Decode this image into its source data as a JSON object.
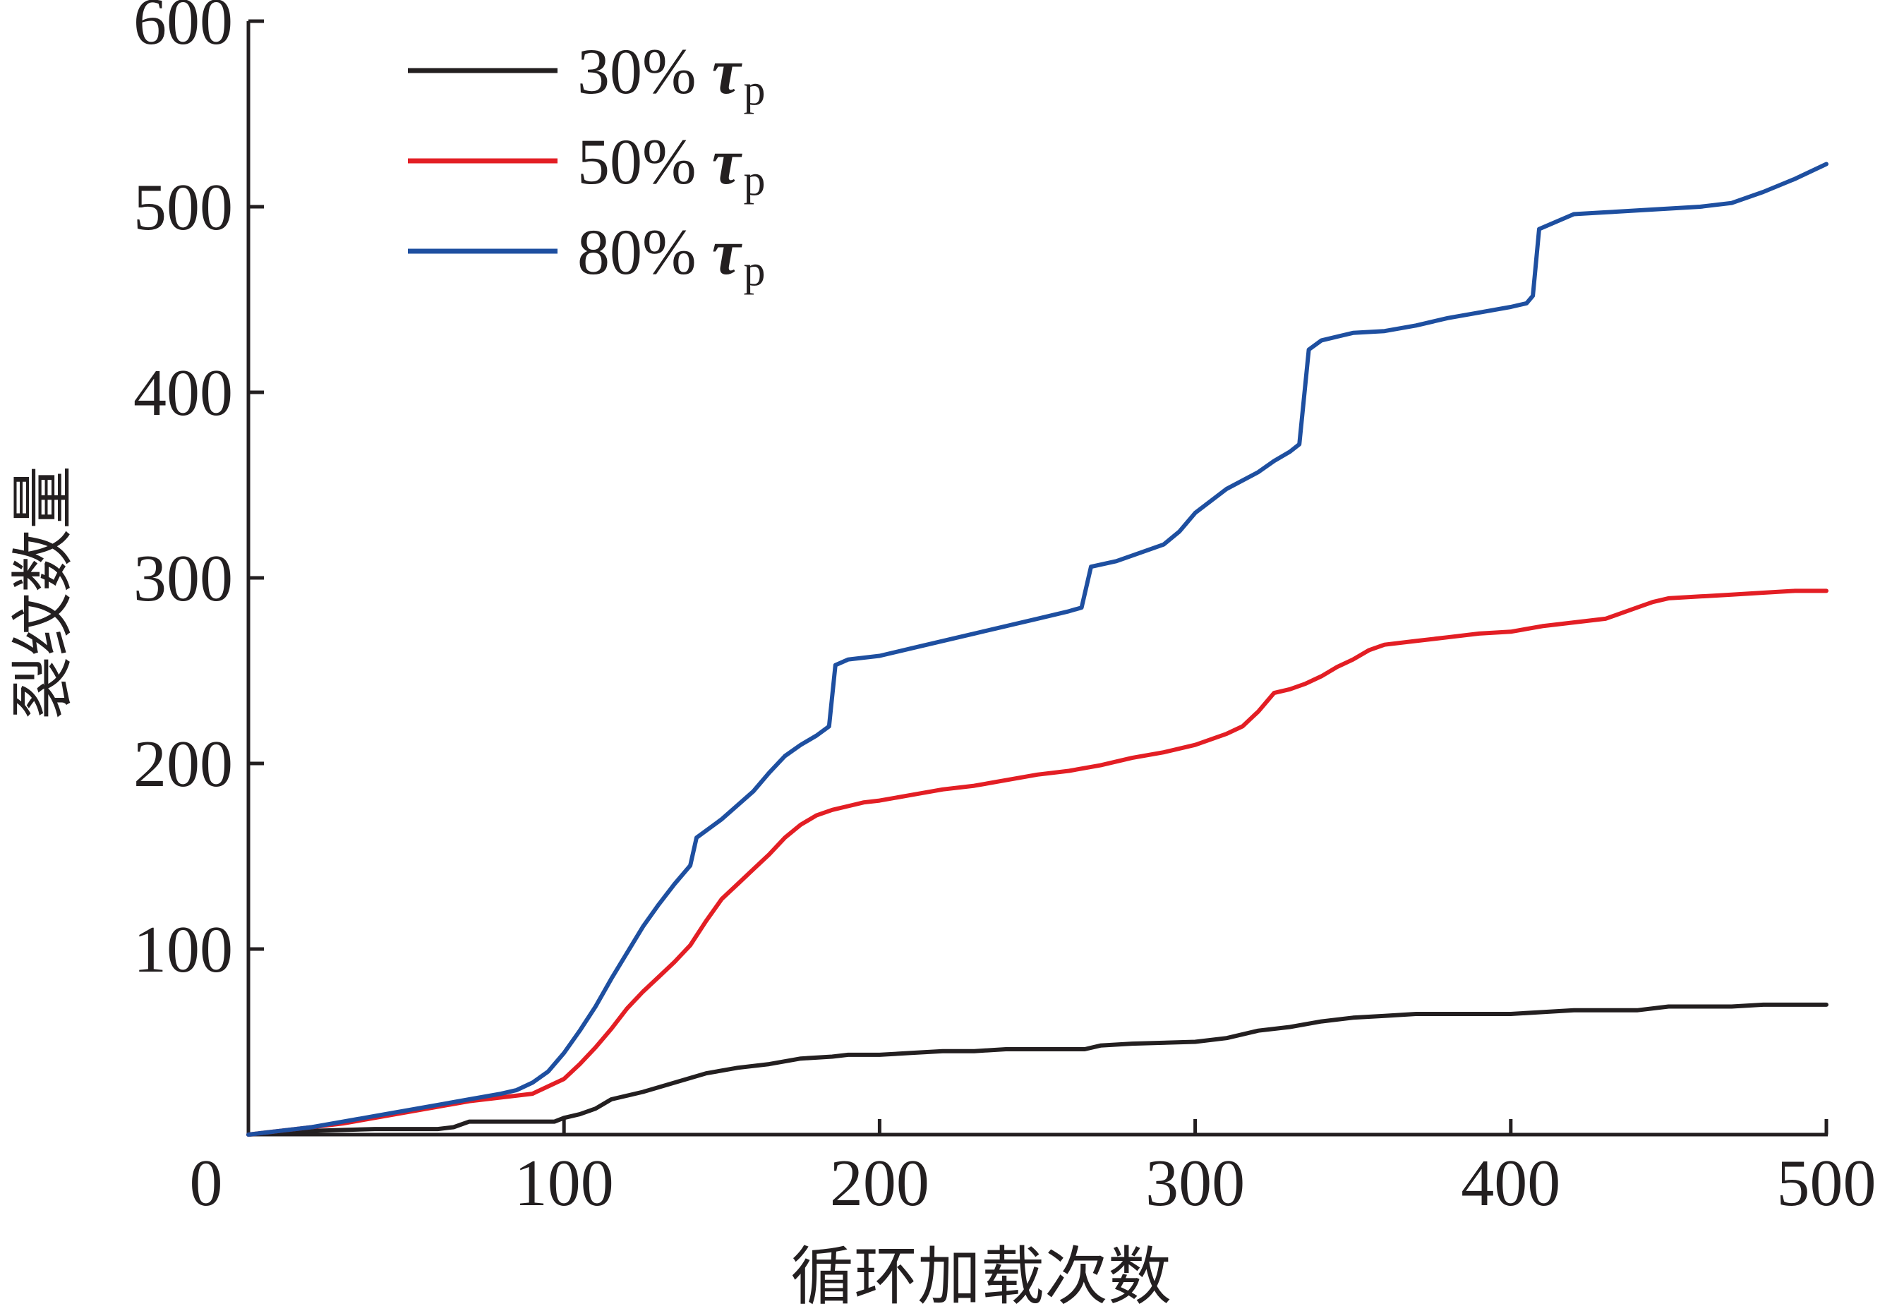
{
  "chart_data": {
    "type": "line",
    "title": "",
    "xlabel": "循环加载次数",
    "ylabel": "裂纹数量",
    "xlim": [
      0,
      500
    ],
    "ylim": [
      0,
      600
    ],
    "x_ticks": [
      "0",
      "100",
      "200",
      "300",
      "400",
      "500"
    ],
    "y_ticks": [
      "100",
      "200",
      "300",
      "400",
      "500",
      "600"
    ],
    "grid": false,
    "legend_position": "top-left",
    "series": [
      {
        "name": "30% τp",
        "legend_percent": "30%",
        "legend_symbol": "τ",
        "legend_subscript": "p",
        "color": "#231f20",
        "points": [
          [
            0,
            0
          ],
          [
            20,
            2
          ],
          [
            40,
            3
          ],
          [
            60,
            3
          ],
          [
            65,
            4
          ],
          [
            70,
            7
          ],
          [
            80,
            7
          ],
          [
            97,
            7
          ],
          [
            100,
            9
          ],
          [
            105,
            11
          ],
          [
            110,
            14
          ],
          [
            115,
            19
          ],
          [
            125,
            23
          ],
          [
            135,
            28
          ],
          [
            145,
            33
          ],
          [
            155,
            36
          ],
          [
            165,
            38
          ],
          [
            175,
            41
          ],
          [
            185,
            42
          ],
          [
            190,
            43
          ],
          [
            200,
            43
          ],
          [
            210,
            44
          ],
          [
            220,
            45
          ],
          [
            230,
            45
          ],
          [
            240,
            46
          ],
          [
            250,
            46
          ],
          [
            265,
            46
          ],
          [
            270,
            48
          ],
          [
            280,
            49
          ],
          [
            300,
            50
          ],
          [
            310,
            52
          ],
          [
            320,
            56
          ],
          [
            330,
            58
          ],
          [
            340,
            61
          ],
          [
            350,
            63
          ],
          [
            360,
            64
          ],
          [
            370,
            65
          ],
          [
            400,
            65
          ],
          [
            410,
            66
          ],
          [
            420,
            67
          ],
          [
            440,
            67
          ],
          [
            450,
            69
          ],
          [
            460,
            69
          ],
          [
            470,
            69
          ],
          [
            480,
            70
          ],
          [
            500,
            70
          ]
        ]
      },
      {
        "name": "50% τp",
        "legend_percent": "50%",
        "legend_symbol": "τ",
        "legend_subscript": "p",
        "color": "#e31e24",
        "points": [
          [
            0,
            0
          ],
          [
            10,
            2
          ],
          [
            20,
            4
          ],
          [
            30,
            6
          ],
          [
            40,
            9
          ],
          [
            50,
            12
          ],
          [
            60,
            15
          ],
          [
            70,
            18
          ],
          [
            80,
            20
          ],
          [
            90,
            22
          ],
          [
            95,
            26
          ],
          [
            100,
            30
          ],
          [
            105,
            38
          ],
          [
            110,
            47
          ],
          [
            115,
            57
          ],
          [
            120,
            68
          ],
          [
            125,
            77
          ],
          [
            130,
            85
          ],
          [
            135,
            93
          ],
          [
            140,
            102
          ],
          [
            145,
            115
          ],
          [
            150,
            127
          ],
          [
            155,
            135
          ],
          [
            160,
            143
          ],
          [
            165,
            151
          ],
          [
            170,
            160
          ],
          [
            175,
            167
          ],
          [
            180,
            172
          ],
          [
            185,
            175
          ],
          [
            190,
            177
          ],
          [
            195,
            179
          ],
          [
            200,
            180
          ],
          [
            210,
            183
          ],
          [
            220,
            186
          ],
          [
            230,
            188
          ],
          [
            240,
            191
          ],
          [
            250,
            194
          ],
          [
            260,
            196
          ],
          [
            270,
            199
          ],
          [
            280,
            203
          ],
          [
            290,
            206
          ],
          [
            300,
            210
          ],
          [
            310,
            216
          ],
          [
            315,
            220
          ],
          [
            320,
            228
          ],
          [
            325,
            238
          ],
          [
            330,
            240
          ],
          [
            335,
            243
          ],
          [
            340,
            247
          ],
          [
            345,
            252
          ],
          [
            350,
            256
          ],
          [
            355,
            261
          ],
          [
            360,
            264
          ],
          [
            370,
            266
          ],
          [
            380,
            268
          ],
          [
            390,
            270
          ],
          [
            400,
            271
          ],
          [
            410,
            274
          ],
          [
            420,
            276
          ],
          [
            430,
            278
          ],
          [
            440,
            284
          ],
          [
            445,
            287
          ],
          [
            450,
            289
          ],
          [
            460,
            290
          ],
          [
            470,
            291
          ],
          [
            480,
            292
          ],
          [
            490,
            293
          ],
          [
            500,
            293
          ]
        ]
      },
      {
        "name": "80% τp",
        "legend_percent": "80%",
        "legend_symbol": "τ",
        "legend_subscript": "p",
        "color": "#1e4fa0",
        "points": [
          [
            0,
            0
          ],
          [
            10,
            2
          ],
          [
            20,
            4
          ],
          [
            30,
            7
          ],
          [
            40,
            10
          ],
          [
            50,
            13
          ],
          [
            60,
            16
          ],
          [
            70,
            19
          ],
          [
            80,
            22
          ],
          [
            85,
            24
          ],
          [
            90,
            28
          ],
          [
            95,
            34
          ],
          [
            100,
            44
          ],
          [
            105,
            56
          ],
          [
            110,
            69
          ],
          [
            115,
            84
          ],
          [
            120,
            98
          ],
          [
            125,
            112
          ],
          [
            130,
            124
          ],
          [
            135,
            135
          ],
          [
            140,
            145
          ],
          [
            142,
            160
          ],
          [
            150,
            170
          ],
          [
            160,
            185
          ],
          [
            165,
            195
          ],
          [
            170,
            204
          ],
          [
            175,
            210
          ],
          [
            180,
            215
          ],
          [
            184,
            220
          ],
          [
            186,
            253
          ],
          [
            190,
            256
          ],
          [
            200,
            258
          ],
          [
            210,
            262
          ],
          [
            220,
            266
          ],
          [
            230,
            270
          ],
          [
            240,
            274
          ],
          [
            250,
            278
          ],
          [
            260,
            282
          ],
          [
            264,
            284
          ],
          [
            267,
            306
          ],
          [
            275,
            309
          ],
          [
            280,
            312
          ],
          [
            290,
            318
          ],
          [
            295,
            325
          ],
          [
            300,
            335
          ],
          [
            310,
            348
          ],
          [
            320,
            357
          ],
          [
            325,
            363
          ],
          [
            330,
            368
          ],
          [
            333,
            372
          ],
          [
            336,
            423
          ],
          [
            340,
            428
          ],
          [
            350,
            432
          ],
          [
            360,
            433
          ],
          [
            370,
            436
          ],
          [
            380,
            440
          ],
          [
            390,
            443
          ],
          [
            400,
            446
          ],
          [
            405,
            448
          ],
          [
            407,
            452
          ],
          [
            409,
            488
          ],
          [
            420,
            496
          ],
          [
            430,
            497
          ],
          [
            440,
            498
          ],
          [
            450,
            499
          ],
          [
            460,
            500
          ],
          [
            470,
            502
          ],
          [
            480,
            508
          ],
          [
            490,
            515
          ],
          [
            500,
            523
          ]
        ]
      }
    ]
  }
}
